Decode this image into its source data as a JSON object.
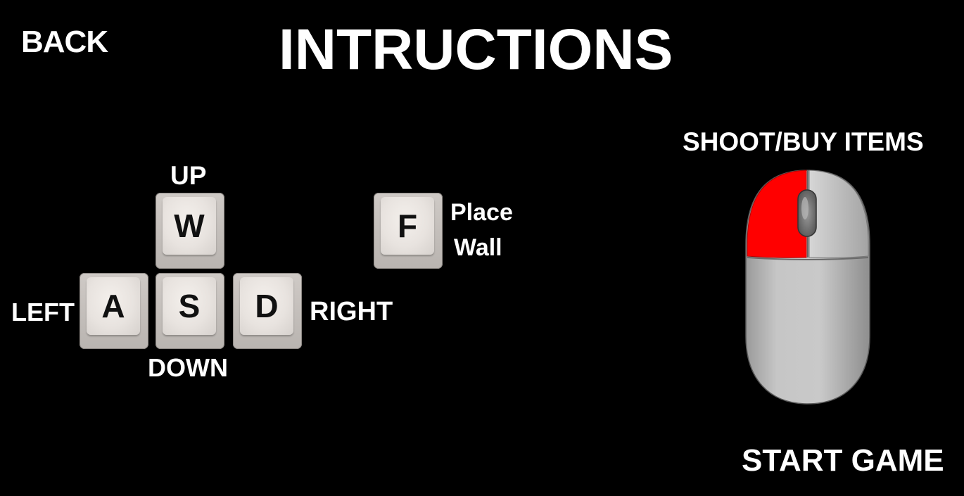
{
  "screen": {
    "title": "INTRUCTIONS",
    "back_label": "BACK",
    "start_label": "START GAME"
  },
  "movement": {
    "up_label": "UP",
    "down_label": "DOWN",
    "left_label": "LEFT",
    "right_label": "RIGHT",
    "keys": {
      "w": "W",
      "a": "A",
      "s": "S",
      "d": "D"
    }
  },
  "wall": {
    "key": "F",
    "label_line1": "Place",
    "label_line2": "Wall"
  },
  "mouse": {
    "label": "SHOOT/BUY ITEMS",
    "highlight_button": "left",
    "highlight_color": "#ff0000",
    "body_color": "#c8c8c8"
  },
  "colors": {
    "background": "#000000",
    "text": "#ffffff",
    "key_text": "#111111"
  }
}
